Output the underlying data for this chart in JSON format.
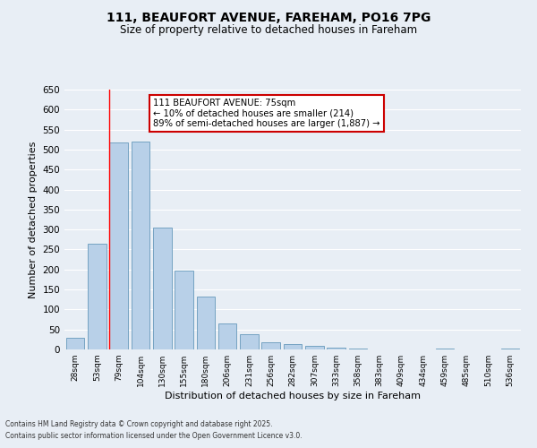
{
  "title": "111, BEAUFORT AVENUE, FAREHAM, PO16 7PG",
  "subtitle": "Size of property relative to detached houses in Fareham",
  "xlabel": "Distribution of detached houses by size in Fareham",
  "ylabel": "Number of detached properties",
  "categories": [
    "28sqm",
    "53sqm",
    "79sqm",
    "104sqm",
    "130sqm",
    "155sqm",
    "180sqm",
    "206sqm",
    "231sqm",
    "256sqm",
    "282sqm",
    "307sqm",
    "333sqm",
    "358sqm",
    "383sqm",
    "409sqm",
    "434sqm",
    "459sqm",
    "485sqm",
    "510sqm",
    "536sqm"
  ],
  "values": [
    30,
    265,
    518,
    520,
    305,
    198,
    132,
    65,
    38,
    17,
    14,
    8,
    5,
    3,
    1,
    1,
    0,
    3,
    1,
    1,
    3
  ],
  "bar_color": "#b8d0e8",
  "bar_edge_color": "#6699bb",
  "bg_color": "#e8eef5",
  "grid_color": "#ffffff",
  "red_line_x": 1.55,
  "annotation_text": "111 BEAUFORT AVENUE: 75sqm\n← 10% of detached houses are smaller (214)\n89% of semi-detached houses are larger (1,887) →",
  "annotation_box_color": "#ffffff",
  "annotation_box_edge": "#cc0000",
  "footnote1": "Contains HM Land Registry data © Crown copyright and database right 2025.",
  "footnote2": "Contains public sector information licensed under the Open Government Licence v3.0.",
  "ylim": [
    0,
    650
  ],
  "yticks": [
    0,
    50,
    100,
    150,
    200,
    250,
    300,
    350,
    400,
    450,
    500,
    550,
    600,
    650
  ]
}
